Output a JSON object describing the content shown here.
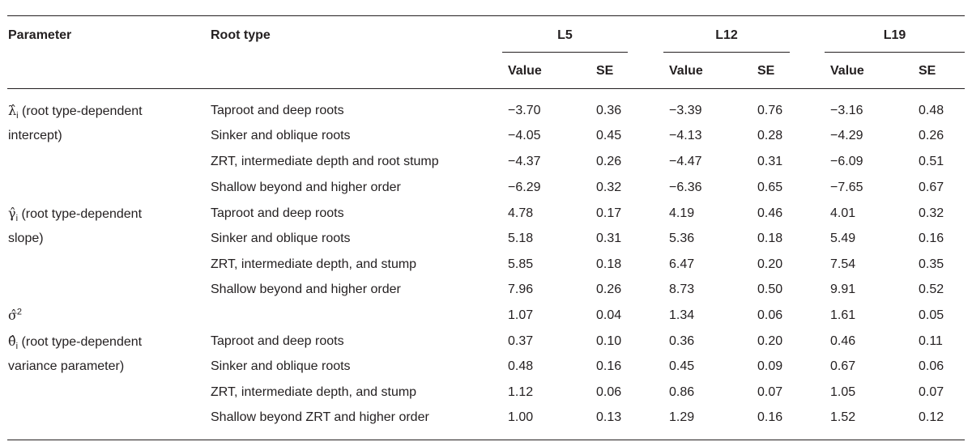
{
  "header": {
    "parameter": "Parameter",
    "root_type": "Root type",
    "groups": [
      "L5",
      "L12",
      "L19"
    ],
    "value": "Value",
    "se": "SE"
  },
  "params": {
    "lambda": {
      "symbol": "λ̂",
      "sub": "i",
      "text": " (root type-dependent",
      "cont": "intercept)"
    },
    "gamma": {
      "symbol": "γ̂",
      "sub": "i",
      "text": " (root type-dependent",
      "cont": "slope)"
    },
    "sigma": {
      "symbol": "σ̂",
      "sup": "2"
    },
    "theta": {
      "symbol": "θ̂",
      "sub": "i",
      "text": " (root type-dependent",
      "cont": "variance parameter)"
    }
  },
  "rows": [
    {
      "root": "Taproot and deep roots",
      "v": [
        "−3.70",
        "0.36",
        "−3.39",
        "0.76",
        "−3.16",
        "0.48"
      ]
    },
    {
      "root": "Sinker and oblique roots",
      "v": [
        "−4.05",
        "0.45",
        "−4.13",
        "0.28",
        "−4.29",
        "0.26"
      ]
    },
    {
      "root": "ZRT, intermediate depth and root stump",
      "v": [
        "−4.37",
        "0.26",
        "−4.47",
        "0.31",
        "−6.09",
        "0.51"
      ]
    },
    {
      "root": "Shallow beyond and higher order",
      "v": [
        "−6.29",
        "0.32",
        "−6.36",
        "0.65",
        "−7.65",
        "0.67"
      ]
    },
    {
      "root": "Taproot and deep roots",
      "v": [
        "4.78",
        "0.17",
        "4.19",
        "0.46",
        "4.01",
        "0.32"
      ]
    },
    {
      "root": "Sinker and oblique roots",
      "v": [
        "5.18",
        "0.31",
        "5.36",
        "0.18",
        "5.49",
        "0.16"
      ]
    },
    {
      "root": "ZRT, intermediate depth, and stump",
      "v": [
        "5.85",
        "0.18",
        "6.47",
        "0.20",
        "7.54",
        "0.35"
      ]
    },
    {
      "root": "Shallow beyond and higher order",
      "v": [
        "7.96",
        "0.26",
        "8.73",
        "0.50",
        "9.91",
        "0.52"
      ]
    },
    {
      "root": "",
      "v": [
        "1.07",
        "0.04",
        "1.34",
        "0.06",
        "1.61",
        "0.05"
      ]
    },
    {
      "root": "Taproot and deep roots",
      "v": [
        "0.37",
        "0.10",
        "0.36",
        "0.20",
        "0.46",
        "0.11"
      ]
    },
    {
      "root": "Sinker and oblique roots",
      "v": [
        "0.48",
        "0.16",
        "0.45",
        "0.09",
        "0.67",
        "0.06"
      ]
    },
    {
      "root": "ZRT, intermediate depth, and stump",
      "v": [
        "1.12",
        "0.06",
        "0.86",
        "0.07",
        "1.05",
        "0.07"
      ]
    },
    {
      "root": "Shallow beyond ZRT and higher order",
      "v": [
        "1.00",
        "0.13",
        "1.29",
        "0.16",
        "1.52",
        "0.12"
      ]
    }
  ]
}
